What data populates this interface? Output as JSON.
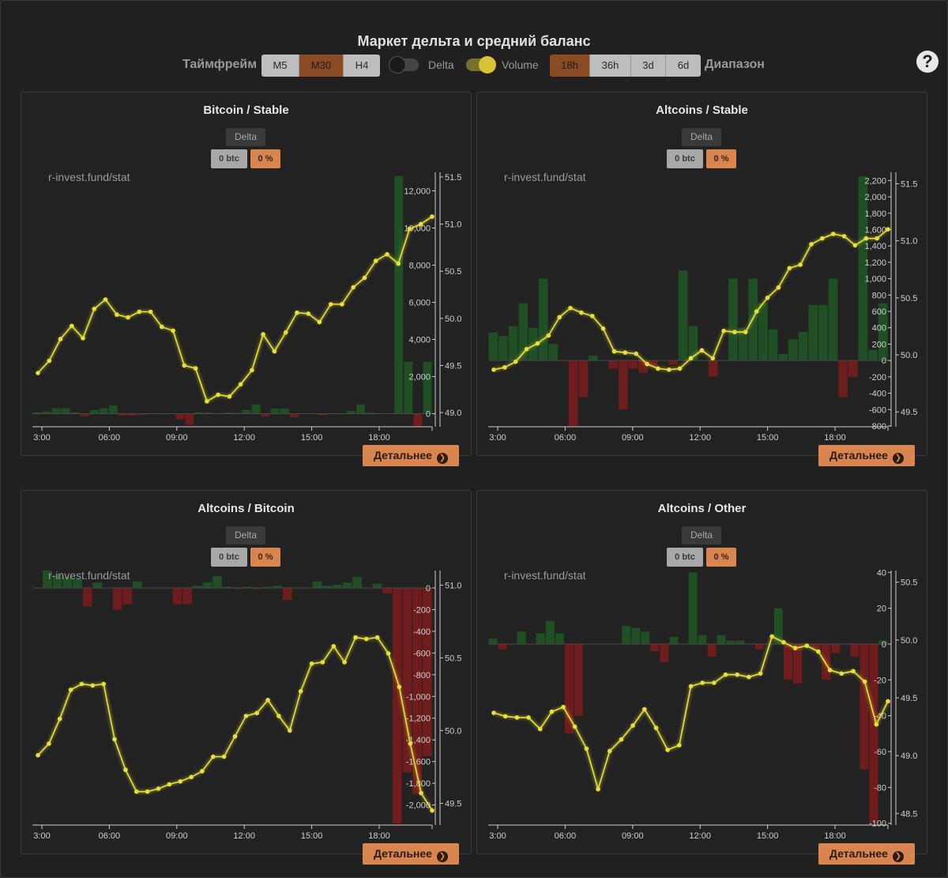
{
  "header": {
    "title": "Маркет дельта и средний баланс",
    "timeframe_label": "Таймфрейм",
    "timeframes": [
      "M5",
      "M30",
      "H4"
    ],
    "timeframe_active": 1,
    "delta_label": "Delta",
    "delta_on": false,
    "volume_label": "Volume",
    "volume_on": true,
    "ranges": [
      "18h",
      "36h",
      "3d",
      "6d"
    ],
    "range_active": 0,
    "range_label": "Диапазон",
    "help": "?"
  },
  "colors": {
    "accent": "#d9854f",
    "line": "#e8e03a",
    "pos_bar": "#1f4f23",
    "neg_bar": "#6e1c1c",
    "bg": "#202020"
  },
  "panels": [
    {
      "title": "Bitcoin / Stable",
      "delta_label": "Delta",
      "btc_value": "0 btc",
      "pct_value": "0 %",
      "watermark": "r-invest.fund/stat",
      "details_label": "Детальнее",
      "chart_data": {
        "type": "bar+line",
        "x_ticks": [
          "3:00",
          "06:00",
          "09:00",
          "12:00",
          "15:00",
          "18:00"
        ],
        "bar_axis": {
          "min": -700,
          "max": 13000,
          "ticks": [
            0,
            2000,
            4000,
            6000,
            8000,
            10000,
            12000
          ],
          "tick_labels": [
            "0",
            "2,000",
            "4,000",
            "6,000",
            "8,000",
            "10,000",
            "12,000"
          ]
        },
        "line_axis": {
          "min": 48.85,
          "max": 51.55,
          "ticks": [
            49.0,
            49.5,
            50.0,
            50.5,
            51.0,
            51.5
          ],
          "tick_labels": [
            "49.0",
            "49.5",
            "50.0",
            "50.5",
            "51.0",
            "51.5"
          ]
        },
        "bars": [
          80,
          120,
          300,
          300,
          80,
          -150,
          200,
          300,
          450,
          -100,
          -100,
          -60,
          0,
          30,
          0,
          -300,
          -600,
          70,
          70,
          30,
          70,
          50,
          200,
          500,
          -150,
          280,
          280,
          -200,
          0,
          0,
          -70,
          20,
          30,
          150,
          500,
          60,
          0,
          0,
          12800,
          2800,
          -700,
          2800
        ],
        "line": [
          49.42,
          49.55,
          49.78,
          49.92,
          49.79,
          50.1,
          50.2,
          50.04,
          50.01,
          50.07,
          50.07,
          49.91,
          49.87,
          49.5,
          49.47,
          49.12,
          49.19,
          49.17,
          49.3,
          49.45,
          49.83,
          49.65,
          49.85,
          50.06,
          50.05,
          49.96,
          50.15,
          50.15,
          50.33,
          50.43,
          50.61,
          50.68,
          50.58,
          50.95,
          51.0,
          51.08
        ]
      }
    },
    {
      "title": "Altcoins / Stable",
      "delta_label": "Delta",
      "btc_value": "0 btc",
      "pct_value": "0 %",
      "watermark": "r-invest.fund/stat",
      "details_label": "Детальнее",
      "chart_data": {
        "type": "bar+line",
        "x_ticks": [
          "3:00",
          "06:00",
          "09:00",
          "12:00",
          "15:00",
          "18:00"
        ],
        "bar_axis": {
          "min": -810,
          "max": 2300,
          "ticks": [
            -800,
            -600,
            -400,
            -200,
            0,
            200,
            400,
            600,
            800,
            1000,
            1200,
            1400,
            1600,
            1800,
            2000,
            2200
          ],
          "tick_labels": [
            "-800",
            "-600",
            "-400",
            "-200",
            "0",
            "200",
            "400",
            "600",
            "800",
            "1,000",
            "1,200",
            "1,400",
            "1,600",
            "1,800",
            "2,000",
            "2,200"
          ]
        },
        "line_axis": {
          "min": 49.37,
          "max": 51.6,
          "ticks": [
            49.5,
            50.0,
            50.5,
            51.0,
            51.5
          ],
          "tick_labels": [
            "49.5",
            "50.0",
            "50.5",
            "51.0",
            "51.5"
          ]
        },
        "bars": [
          340,
          300,
          420,
          700,
          400,
          1000,
          200,
          0,
          -800,
          -450,
          60,
          0,
          -100,
          -600,
          -100,
          -150,
          -80,
          0,
          -50,
          1100,
          420,
          0,
          -200,
          0,
          1000,
          400,
          1000,
          700,
          380,
          80,
          260,
          350,
          680,
          680,
          1000,
          -450,
          -200,
          2250,
          130,
          700
        ],
        "line": [
          49.87,
          49.89,
          49.94,
          50.05,
          50.1,
          50.17,
          50.33,
          50.41,
          50.37,
          50.34,
          50.23,
          50.03,
          50.02,
          50.01,
          49.92,
          49.88,
          49.87,
          49.88,
          49.97,
          50.04,
          49.97,
          50.21,
          50.2,
          50.2,
          50.38,
          50.5,
          50.59,
          50.76,
          50.79,
          50.97,
          51.02,
          51.06,
          51.04,
          50.96,
          51.02,
          51.02,
          51.1
        ]
      }
    },
    {
      "title": "Altcoins / Bitcoin",
      "delta_label": "Delta",
      "btc_value": "0 btc",
      "pct_value": "0 %",
      "watermark": "r-invest.fund/stat",
      "details_label": "Детальнее",
      "chart_data": {
        "type": "bar+line",
        "x_ticks": [
          "3:00",
          "06:00",
          "09:00",
          "12:00",
          "15:00",
          "18:00"
        ],
        "bar_axis": {
          "min": -2185,
          "max": 160,
          "ticks": [
            -2000,
            -1800,
            -1600,
            -1400,
            -1200,
            -1000,
            -800,
            -600,
            -400,
            -200,
            0
          ],
          "tick_labels": [
            "-2,000",
            "-1,800",
            "-1,600",
            "-1,400",
            "-1,200",
            "-1,000",
            "-800",
            "-600",
            "-400",
            "-200",
            "0"
          ]
        },
        "line_axis": {
          "min": 49.35,
          "max": 51.1,
          "ticks": [
            49.5,
            50.0,
            50.5,
            51.0
          ],
          "tick_labels": [
            "49.5",
            "50.0",
            "50.5",
            "51.0"
          ]
        },
        "bars": [
          0,
          160,
          120,
          100,
          80,
          -170,
          50,
          0,
          -200,
          -150,
          60,
          0,
          0,
          0,
          -150,
          -150,
          20,
          50,
          110,
          10,
          -10,
          10,
          -10,
          10,
          20,
          -110,
          0,
          0,
          60,
          20,
          30,
          50,
          100,
          0,
          40,
          -50,
          -2170,
          -1700,
          -1900,
          -1550
        ],
        "line": [
          49.83,
          49.91,
          50.08,
          50.28,
          50.32,
          50.31,
          50.32,
          49.94,
          49.73,
          49.58,
          49.58,
          49.6,
          49.63,
          49.65,
          49.68,
          49.72,
          49.82,
          49.82,
          49.96,
          50.1,
          50.12,
          50.21,
          50.1,
          50.0,
          50.27,
          50.46,
          50.47,
          50.58,
          50.47,
          50.64,
          50.63,
          50.64,
          50.53,
          50.3,
          49.91,
          49.57,
          49.45
        ]
      }
    },
    {
      "title": "Altcoins / Other",
      "delta_label": "Delta",
      "btc_value": "0 btc",
      "pct_value": "0 %",
      "watermark": "r-invest.fund/stat",
      "details_label": "Детальнее",
      "chart_data": {
        "type": "bar+line",
        "x_ticks": [
          "3:00",
          "06:00",
          "09:00",
          "12:00",
          "15:00",
          "18:00"
        ],
        "bar_axis": {
          "min": -101,
          "max": 41,
          "ticks": [
            -100,
            -80,
            -60,
            -40,
            -20,
            0,
            20,
            40
          ],
          "tick_labels": [
            "-100",
            "-80",
            "-60",
            "-40",
            "-20",
            "0",
            "20",
            "40"
          ]
        },
        "line_axis": {
          "min": 48.4,
          "max": 50.6,
          "ticks": [
            48.5,
            49.0,
            49.5,
            50.0,
            50.5
          ],
          "tick_labels": [
            "48.5",
            "49.0",
            "49.5",
            "50.0",
            "50.5"
          ]
        },
        "bars": [
          3,
          -3,
          0,
          7,
          0,
          6,
          13,
          6,
          -50,
          -40,
          0,
          0,
          0,
          0,
          10,
          9,
          7,
          -4,
          -10,
          4,
          0,
          40,
          5,
          -7,
          5,
          2,
          2,
          0,
          -3,
          0,
          20,
          -20,
          -22,
          0,
          -3,
          -20,
          -5,
          0,
          -7,
          -70,
          -100,
          2
        ],
        "line": [
          49.37,
          49.34,
          49.33,
          49.33,
          49.23,
          49.38,
          49.42,
          49.25,
          49.06,
          48.71,
          49.04,
          49.14,
          49.26,
          49.4,
          49.24,
          49.05,
          49.09,
          49.6,
          49.63,
          49.63,
          49.7,
          49.7,
          49.68,
          49.71,
          50.03,
          49.98,
          49.93,
          49.95,
          49.9,
          49.74,
          49.71,
          49.73,
          49.64,
          49.27,
          49.47
        ]
      }
    }
  ]
}
